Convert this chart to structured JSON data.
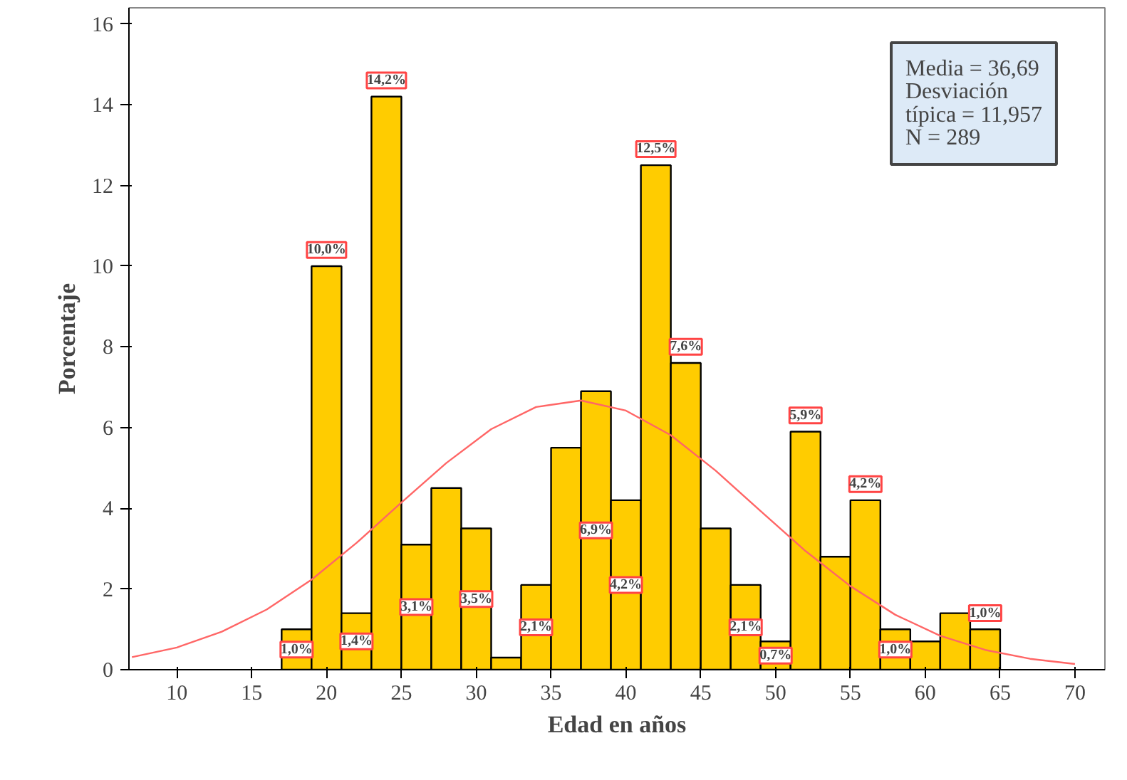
{
  "chart_data": {
    "type": "histogram",
    "xlabel": "Edad en años",
    "ylabel": "Porcentaje",
    "bins": [
      17,
      19,
      21,
      23,
      25,
      27,
      29,
      31,
      33,
      35,
      37,
      39,
      41,
      43,
      45,
      47,
      49,
      51,
      53,
      55,
      57,
      59,
      61,
      63,
      65
    ],
    "values": [
      1.0,
      10.0,
      1.4,
      14.2,
      3.1,
      4.5,
      3.5,
      0.3,
      2.1,
      5.5,
      6.9,
      4.2,
      12.5,
      7.6,
      3.5,
      2.1,
      0.7,
      5.9,
      2.8,
      4.2,
      1.0,
      0.7,
      1.4,
      1.0
    ],
    "value_labels": [
      "1,0%",
      "10,0%",
      "1,4%",
      "14,2%",
      "3,1%",
      null,
      "3,5%",
      null,
      "2,1%",
      null,
      "6,9%",
      "4,2%",
      "12,5%",
      "7,6%",
      null,
      "2,1%",
      "0,7%",
      "5,9%",
      null,
      "4,2%",
      "1,0%",
      null,
      null,
      "1,0%"
    ],
    "color": "#ffcc00",
    "series": [
      {
        "type": "line",
        "color": "#ff6666",
        "x": [
          7,
          10,
          13,
          16,
          19,
          22,
          25,
          28,
          31,
          34,
          37,
          40,
          43,
          46,
          49,
          52,
          55,
          58,
          61,
          64,
          67,
          70
        ],
        "values": [
          0.31,
          0.55,
          0.94,
          1.49,
          2.23,
          3.14,
          4.14,
          5.12,
          5.96,
          6.51,
          6.67,
          6.42,
          5.81,
          4.93,
          3.93,
          2.94,
          2.07,
          1.36,
          0.84,
          0.49,
          0.27,
          0.14
        ]
      }
    ],
    "xlim": [
      6.8,
      72
    ],
    "xticks": [
      10,
      15,
      20,
      25,
      30,
      35,
      40,
      45,
      50,
      55,
      60,
      65,
      70
    ],
    "ylim": [
      0,
      16.4
    ],
    "yticks": [
      0,
      2,
      4,
      6,
      8,
      10,
      12,
      14,
      16
    ],
    "grid": false,
    "annotations": [
      "Media = 36,69\nDesviación\ntípica = 11,957\nN = 289"
    ]
  }
}
